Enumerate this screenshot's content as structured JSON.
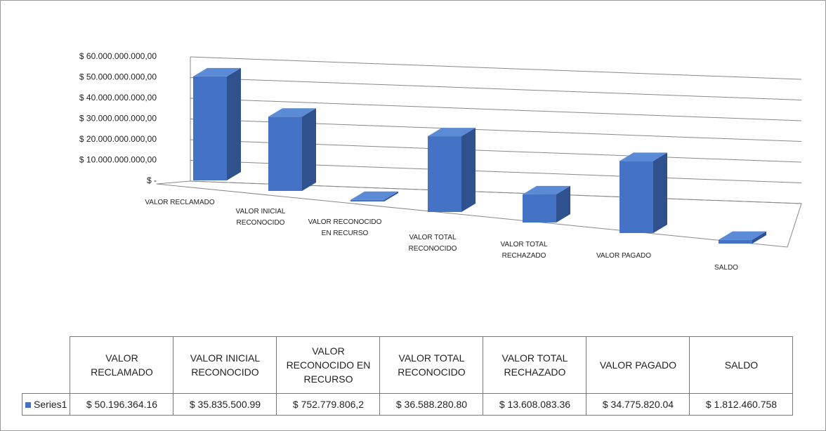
{
  "chart_data": {
    "type": "bar3d",
    "categories": [
      "VALOR RECLAMADO",
      "VALOR INICIAL RECONOCIDO",
      "VALOR RECONOCIDO EN RECURSO",
      "VALOR TOTAL RECONOCIDO",
      "VALOR TOTAL RECHAZADO",
      "VALOR PAGADO",
      "SALDO"
    ],
    "series": [
      {
        "name": "Series1",
        "color": "#4472c4",
        "values": [
          50196364160,
          35835500990,
          752779806.2,
          36588280800,
          13608083360,
          34775820040,
          1812460758
        ],
        "value_labels": [
          "$ 50.196.364.16",
          "$ 35.835.500.99",
          "$ 752.779.806,2",
          "$ 36.588.280.80",
          "$ 13.608.083.36",
          "$ 34.775.820.04",
          "$ 1.812.460.758"
        ]
      }
    ],
    "ylim": [
      0,
      60000000000
    ],
    "yticks": [
      {
        "value": 0,
        "label": "$ -"
      },
      {
        "value": 10000000000,
        "label": "$ 10.000.000.000,00"
      },
      {
        "value": 20000000000,
        "label": "$ 20.000.000.000,00"
      },
      {
        "value": 30000000000,
        "label": "$ 30.000.000.000,00"
      },
      {
        "value": 40000000000,
        "label": "$ 40.000.000.000,00"
      },
      {
        "value": 50000000000,
        "label": "$ 50.000.000.000,00"
      },
      {
        "value": 60000000000,
        "label": "$ 60.000.000.000,00"
      }
    ],
    "grid": true,
    "data_table": true
  }
}
